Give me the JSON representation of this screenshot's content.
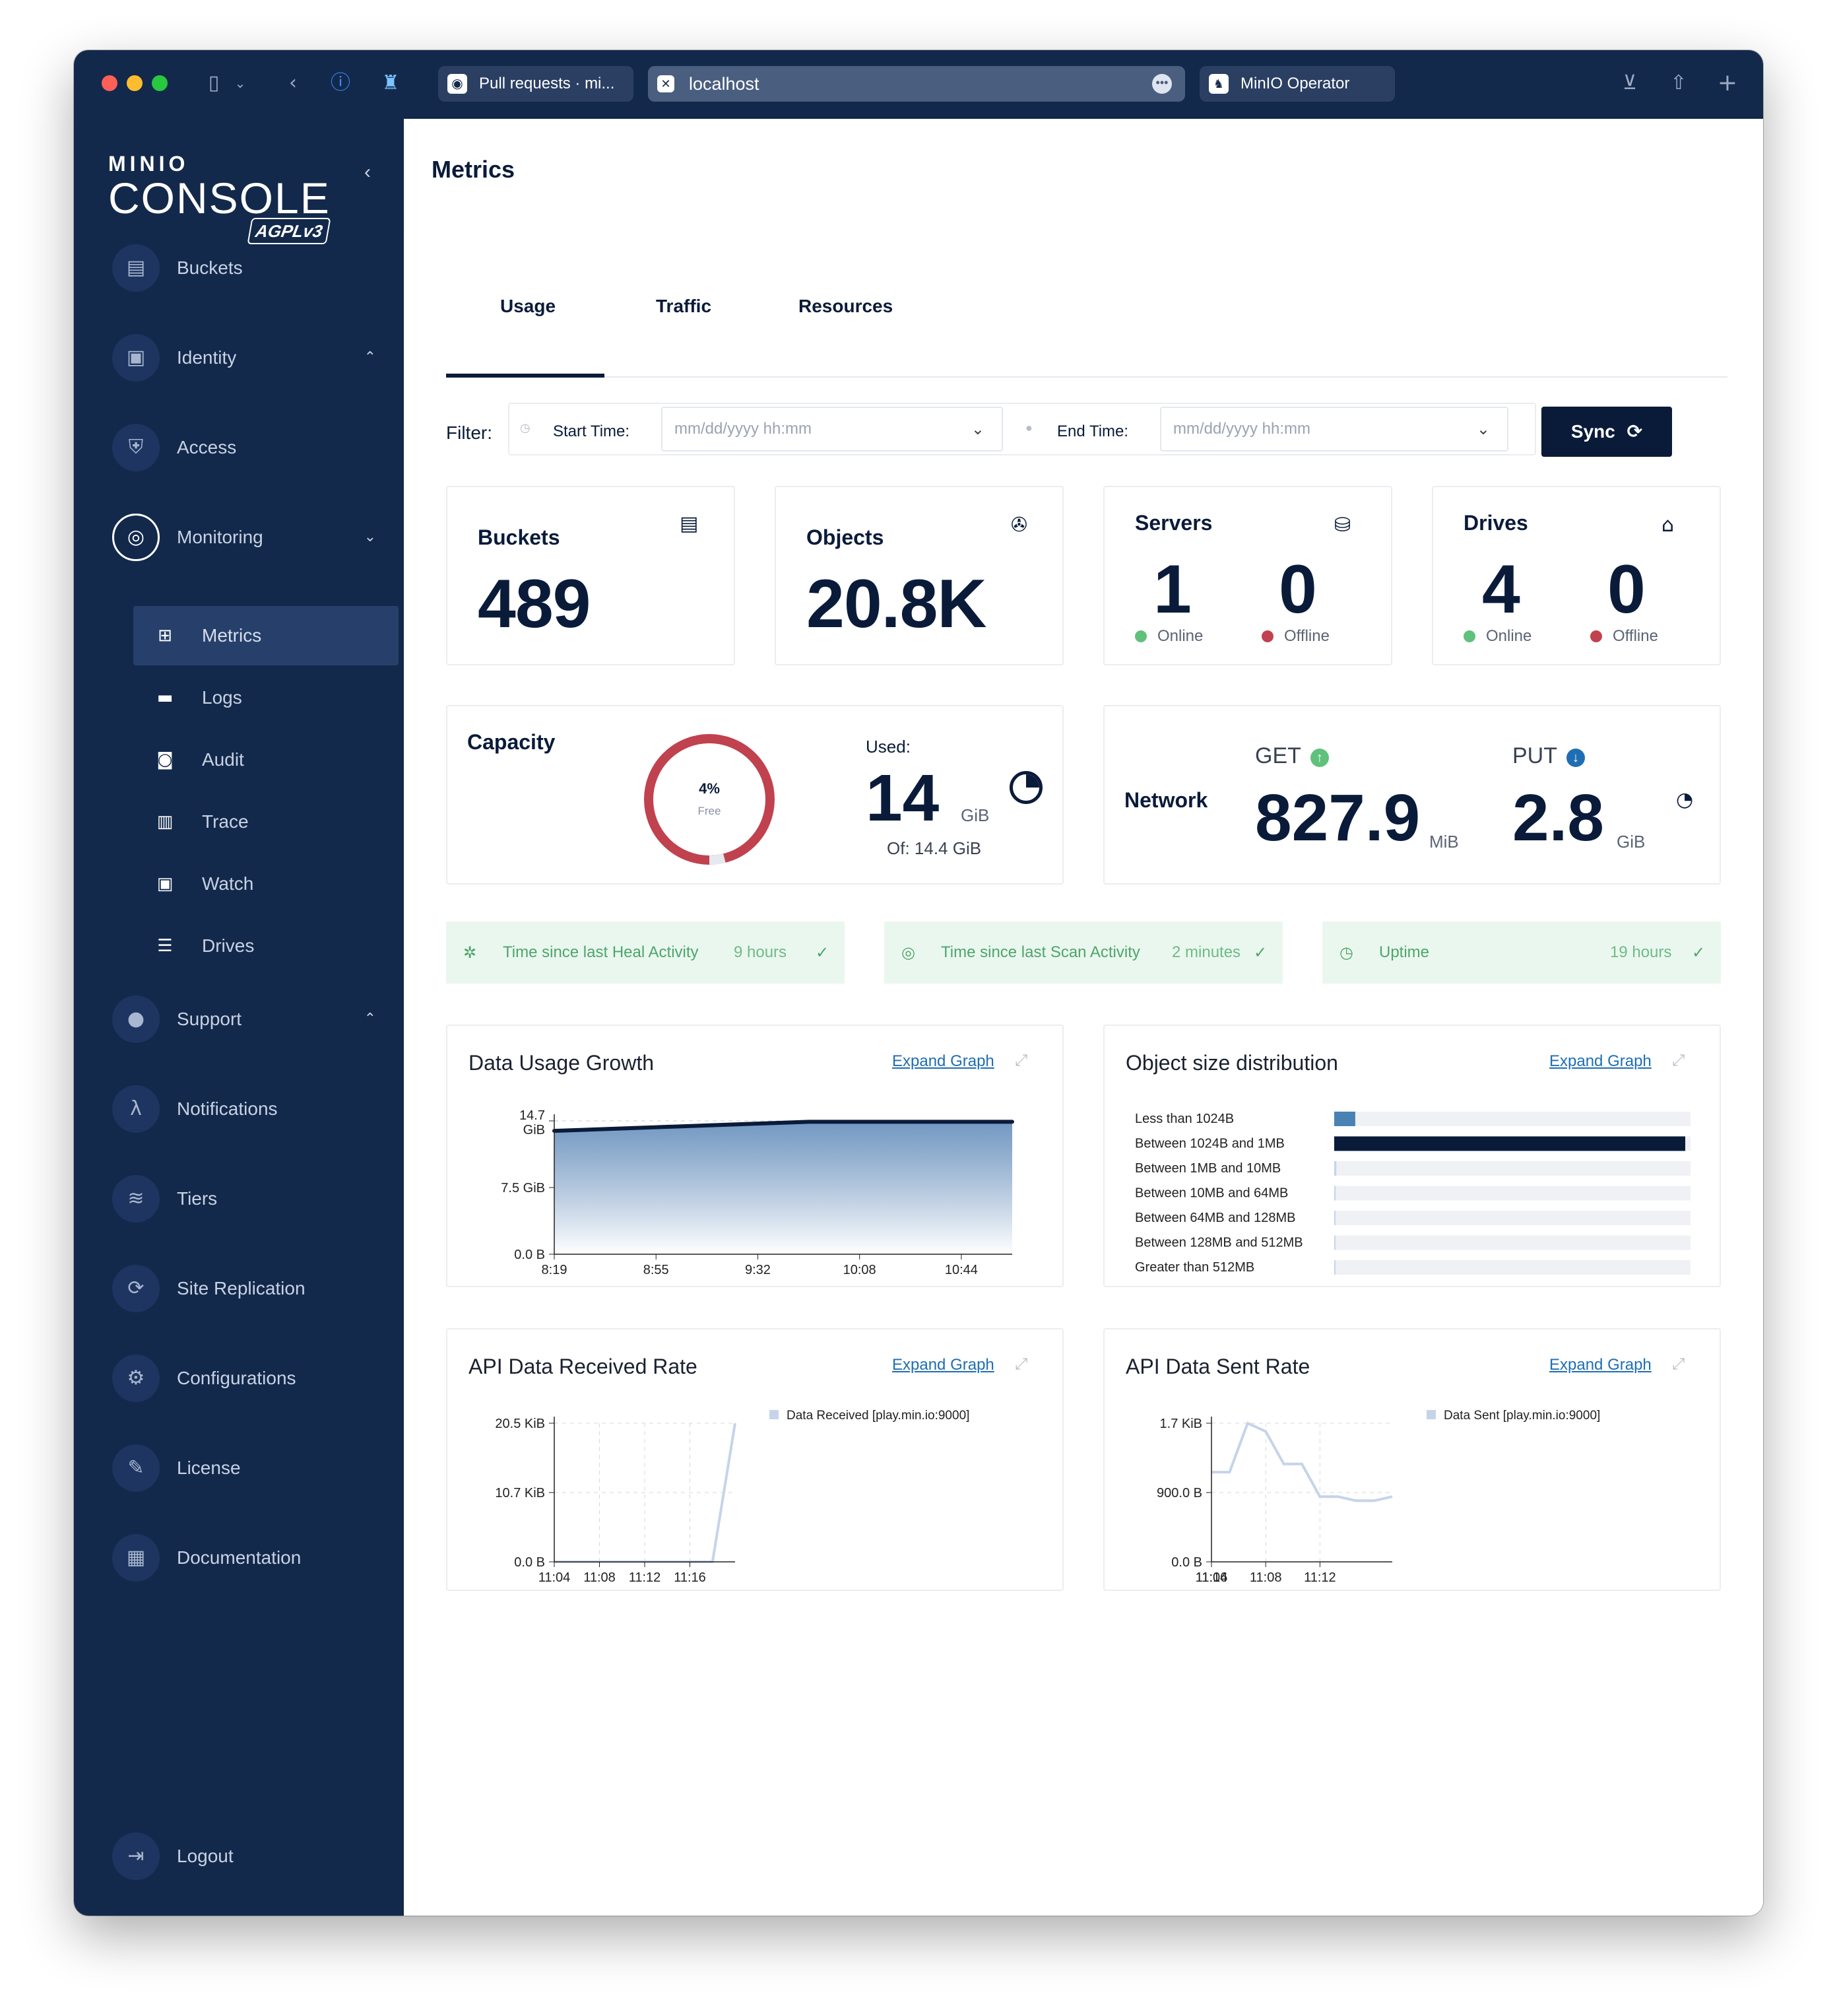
{
  "browser": {
    "tabs": [
      {
        "label": "Pull requests · mi..."
      },
      {
        "label": "localhost"
      },
      {
        "label": "MinIO Operator"
      }
    ]
  },
  "logo": {
    "brand": "MINIO",
    "product": "CONSOLE",
    "license": "AGPLv3"
  },
  "sidebar": {
    "items": [
      {
        "label": "Buckets"
      },
      {
        "label": "Identity"
      },
      {
        "label": "Access"
      },
      {
        "label": "Monitoring"
      },
      {
        "label": "Support"
      },
      {
        "label": "Notifications"
      },
      {
        "label": "Tiers"
      },
      {
        "label": "Site Replication"
      },
      {
        "label": "Configurations"
      },
      {
        "label": "License"
      },
      {
        "label": "Documentation"
      },
      {
        "label": "Logout"
      }
    ],
    "monitoring_sub": [
      {
        "label": "Metrics"
      },
      {
        "label": "Logs"
      },
      {
        "label": "Audit"
      },
      {
        "label": "Trace"
      },
      {
        "label": "Watch"
      },
      {
        "label": "Drives"
      }
    ]
  },
  "page": {
    "title": "Metrics"
  },
  "tabs": [
    "Usage",
    "Traffic",
    "Resources"
  ],
  "filter": {
    "label": "Filter:",
    "start_label": "Start Time:",
    "end_label": "End Time:",
    "placeholder": "mm/dd/yyyy hh:mm",
    "sync": "Sync"
  },
  "summary": {
    "buckets": {
      "title": "Buckets",
      "value": "489"
    },
    "objects": {
      "title": "Objects",
      "value": "20.8K"
    },
    "servers": {
      "title": "Servers",
      "online": "1",
      "offline": "0",
      "online_label": "Online",
      "offline_label": "Offline"
    },
    "drives": {
      "title": "Drives",
      "online": "4",
      "offline": "0",
      "online_label": "Online",
      "offline_label": "Offline"
    }
  },
  "capacity": {
    "title": "Capacity",
    "free_pct": "4%",
    "free_label": "Free",
    "free_fraction": 0.04,
    "used_label": "Used:",
    "used_value": "14",
    "used_unit": "GiB",
    "of": "Of: 14.4 GiB"
  },
  "network": {
    "title": "Network",
    "get_label": "GET",
    "get_value": "827.9",
    "get_unit": "MiB",
    "put_label": "PUT",
    "put_value": "2.8",
    "put_unit": "GiB"
  },
  "health": [
    {
      "label": "Time since last Heal Activity",
      "value": "9 hours"
    },
    {
      "label": "Time since last Scan Activity",
      "value": "2 minutes"
    },
    {
      "label": "Uptime",
      "value": "19 hours"
    }
  ],
  "expand_label": "Expand Graph",
  "colors": {
    "navy": "#13294b",
    "ok_green": "#4ea56c",
    "offline_red": "#c0424e",
    "online_green": "#5fc17c",
    "link_blue": "#1f6eb3"
  },
  "chart_data": [
    {
      "type": "area",
      "title": "Data Usage Growth",
      "x": [
        "8:19",
        "8:37",
        "8:55",
        "9:14",
        "9:32",
        "9:50",
        "10:08",
        "10:26",
        "10:44",
        "11:02"
      ],
      "y": [
        13.6,
        13.8,
        14.0,
        14.2,
        14.4,
        14.6,
        14.6,
        14.6,
        14.6,
        14.6
      ],
      "xticks": [
        "8:19",
        "8:55",
        "9:32",
        "10:08",
        "10:44"
      ],
      "yticks": [
        "0.0 B",
        "7.5 GiB",
        "14.7 GiB"
      ],
      "ylim": [
        0,
        14.7
      ],
      "yunit": "GiB"
    },
    {
      "type": "bar",
      "title": "Object size distribution",
      "categories": [
        "Less than 1024B",
        "Between 1024B and 1MB",
        "Between 1MB and 10MB",
        "Between 10MB and 64MB",
        "Between 64MB and 128MB",
        "Between 128MB and 512MB",
        "Greater than 512MB"
      ],
      "values": [
        1200,
        20000,
        120,
        80,
        30,
        20,
        5
      ],
      "xlim": [
        0,
        20300
      ],
      "orientation": "horizontal"
    },
    {
      "type": "line",
      "title": "API Data Received Rate",
      "series": [
        {
          "name": "Data Received [play.min.io:9000]",
          "x": [
            "11:04",
            "11:06",
            "11:08",
            "11:10",
            "11:12",
            "11:14",
            "11:16",
            "11:17",
            "11:18"
          ],
          "y": [
            0,
            0,
            0,
            0,
            0,
            0,
            0,
            0,
            20.5
          ]
        }
      ],
      "xticks": [
        "11:04",
        "11:08",
        "11:12",
        "11:16"
      ],
      "yticks": [
        "0.0 B",
        "10.7 KiB",
        "20.5 KiB"
      ],
      "ylim": [
        0,
        20.5
      ],
      "yunit": "KiB"
    },
    {
      "type": "line",
      "title": "API Data Sent Rate",
      "series": [
        {
          "name": "Data Sent [play.min.io:9000]",
          "x": [
            "11:04",
            "11:05",
            "11:06",
            "11:08",
            "11:09",
            "11:11",
            "11:12",
            "11:13",
            "11:15",
            "11:17",
            "11:19"
          ],
          "y": [
            1.1,
            1.1,
            1.7,
            1.6,
            1.2,
            1.2,
            0.8,
            0.8,
            0.75,
            0.75,
            0.8
          ]
        }
      ],
      "xticks": [
        "11:04",
        "11:08",
        "11:12",
        "11:16"
      ],
      "yticks": [
        "0.0 B",
        "900.0 B",
        "1.7 KiB"
      ],
      "ylim": [
        0,
        1.7
      ],
      "yunit": "KiB"
    }
  ]
}
